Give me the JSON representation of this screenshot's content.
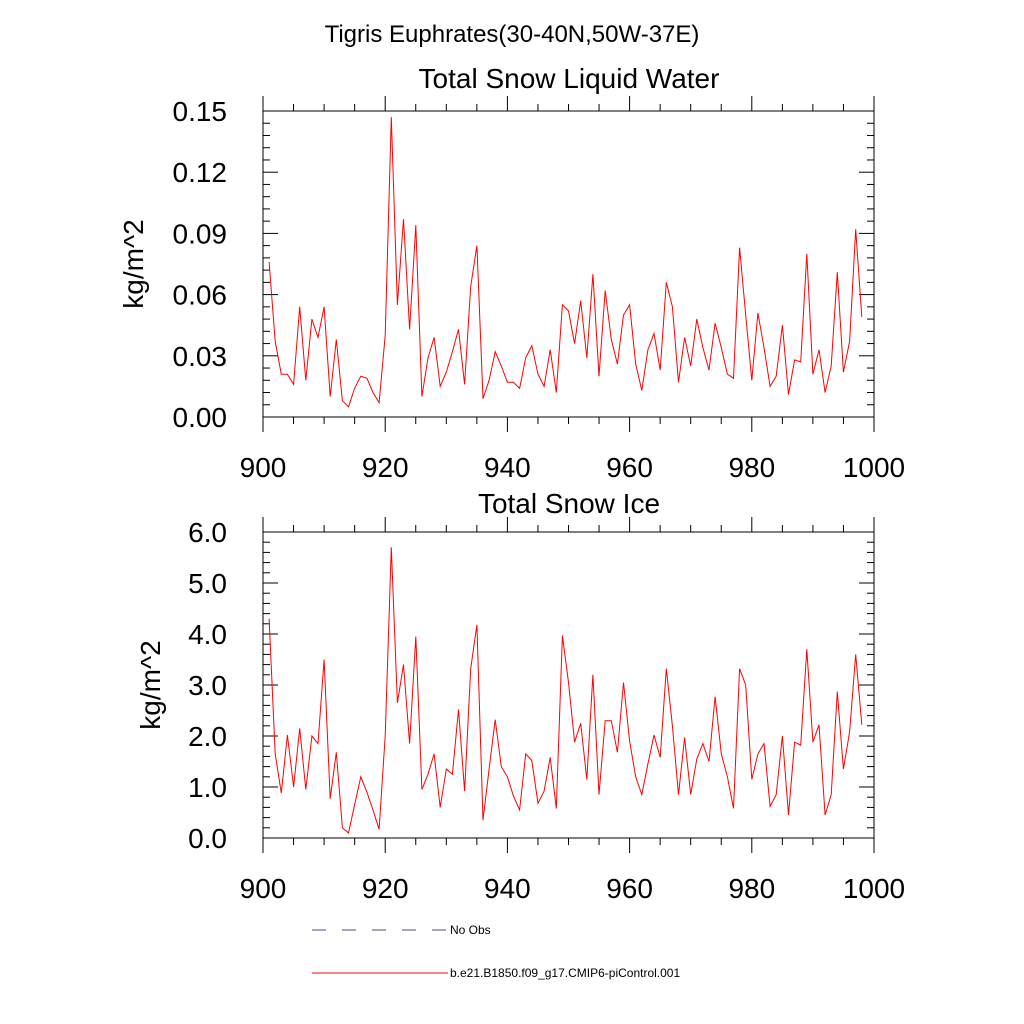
{
  "page": {
    "title": "Tigris Euphrates(30-40N,50W-37E)"
  },
  "colors": {
    "series": "#ff0000",
    "obs": "#4a4a8a",
    "axis": "#000000"
  },
  "chart_data": [
    {
      "type": "line",
      "title": "Total Snow Liquid Water",
      "xlabel": "",
      "ylabel": "kg/m^2",
      "xlim": [
        900,
        1000
      ],
      "ylim": [
        0,
        0.15
      ],
      "xticks": [
        900,
        920,
        940,
        960,
        980,
        1000
      ],
      "xtick_labels": [
        "900",
        "920",
        "940",
        "960",
        "980",
        "1000"
      ],
      "yticks": [
        0,
        0.03,
        0.06,
        0.09,
        0.12,
        0.15
      ],
      "ytick_labels": [
        "0.00",
        "0.03",
        "0.06",
        "0.09",
        "0.12",
        "0.15"
      ],
      "series": [
        {
          "name": "b.e21.B1850.f09_g17.CMIP6-piControl.001",
          "x": [
            901,
            902,
            903,
            904,
            905,
            906,
            907,
            908,
            909,
            910,
            911,
            912,
            913,
            914,
            915,
            916,
            917,
            918,
            919,
            920,
            921,
            922,
            923,
            924,
            925,
            926,
            927,
            928,
            929,
            930,
            931,
            932,
            933,
            934,
            935,
            936,
            937,
            938,
            939,
            940,
            941,
            942,
            943,
            944,
            945,
            946,
            947,
            948,
            949,
            950,
            951,
            952,
            953,
            954,
            955,
            956,
            957,
            958,
            959,
            960,
            961,
            962,
            963,
            964,
            965,
            966,
            967,
            968,
            969,
            970,
            971,
            972,
            973,
            974,
            975,
            976,
            977,
            978,
            979,
            980,
            981,
            982,
            983,
            984,
            985,
            986,
            987,
            988,
            989,
            990,
            991,
            992,
            993,
            994,
            995,
            996,
            997,
            998
          ],
          "values": [
            0.076,
            0.037,
            0.021,
            0.021,
            0.016,
            0.054,
            0.018,
            0.048,
            0.039,
            0.054,
            0.01,
            0.038,
            0.008,
            0.005,
            0.014,
            0.02,
            0.019,
            0.012,
            0.007,
            0.04,
            0.147,
            0.055,
            0.097,
            0.043,
            0.094,
            0.01,
            0.029,
            0.039,
            0.015,
            0.022,
            0.032,
            0.043,
            0.016,
            0.064,
            0.084,
            0.009,
            0.018,
            0.032,
            0.025,
            0.017,
            0.017,
            0.014,
            0.029,
            0.035,
            0.021,
            0.015,
            0.033,
            0.012,
            0.055,
            0.052,
            0.036,
            0.057,
            0.029,
            0.07,
            0.02,
            0.062,
            0.038,
            0.026,
            0.05,
            0.055,
            0.026,
            0.013,
            0.033,
            0.041,
            0.023,
            0.066,
            0.054,
            0.017,
            0.039,
            0.025,
            0.048,
            0.034,
            0.023,
            0.046,
            0.034,
            0.021,
            0.019,
            0.083,
            0.05,
            0.018,
            0.051,
            0.034,
            0.015,
            0.02,
            0.045,
            0.011,
            0.028,
            0.027,
            0.08,
            0.021,
            0.033,
            0.012,
            0.025,
            0.071,
            0.022,
            0.037,
            0.092,
            0.049
          ]
        }
      ]
    },
    {
      "type": "line",
      "title": "Total Snow Ice",
      "xlabel": "",
      "ylabel": "kg/m^2",
      "xlim": [
        900,
        1000
      ],
      "ylim": [
        0,
        6
      ],
      "xticks": [
        900,
        920,
        940,
        960,
        980,
        1000
      ],
      "xtick_labels": [
        "900",
        "920",
        "940",
        "960",
        "980",
        "1000"
      ],
      "yticks": [
        0,
        1,
        2,
        3,
        4,
        5,
        6
      ],
      "ytick_labels": [
        "0.0",
        "1.0",
        "2.0",
        "3.0",
        "4.0",
        "5.0",
        "6.0"
      ],
      "series": [
        {
          "name": "b.e21.B1850.f09_g17.CMIP6-piControl.001",
          "x": [
            901,
            902,
            903,
            904,
            905,
            906,
            907,
            908,
            909,
            910,
            911,
            912,
            913,
            914,
            915,
            916,
            917,
            918,
            919,
            920,
            921,
            922,
            923,
            924,
            925,
            926,
            927,
            928,
            929,
            930,
            931,
            932,
            933,
            934,
            935,
            936,
            937,
            938,
            939,
            940,
            941,
            942,
            943,
            944,
            945,
            946,
            947,
            948,
            949,
            950,
            951,
            952,
            953,
            954,
            955,
            956,
            957,
            958,
            959,
            960,
            961,
            962,
            963,
            964,
            965,
            966,
            967,
            968,
            969,
            970,
            971,
            972,
            973,
            974,
            975,
            976,
            977,
            978,
            979,
            980,
            981,
            982,
            983,
            984,
            985,
            986,
            987,
            988,
            989,
            990,
            991,
            992,
            993,
            994,
            995,
            996,
            997,
            998
          ],
          "values": [
            4.3,
            1.65,
            0.88,
            2.02,
            1.0,
            2.15,
            0.95,
            2.0,
            1.85,
            3.5,
            0.77,
            1.68,
            0.2,
            0.1,
            0.65,
            1.2,
            0.9,
            0.55,
            0.17,
            2.0,
            5.7,
            2.65,
            3.4,
            1.85,
            3.95,
            0.95,
            1.25,
            1.65,
            0.6,
            1.35,
            1.25,
            2.52,
            0.92,
            3.32,
            4.18,
            0.35,
            1.35,
            2.32,
            1.4,
            1.2,
            0.82,
            0.55,
            1.65,
            1.52,
            0.68,
            0.92,
            1.58,
            0.58,
            3.97,
            3.05,
            1.88,
            2.25,
            1.15,
            3.2,
            0.85,
            2.3,
            2.3,
            1.68,
            3.05,
            1.9,
            1.2,
            0.85,
            1.45,
            2.02,
            1.58,
            3.32,
            2.2,
            0.85,
            1.97,
            0.85,
            1.55,
            1.85,
            1.5,
            2.77,
            1.65,
            1.2,
            0.58,
            3.32,
            3.0,
            1.15,
            1.65,
            1.85,
            0.62,
            0.85,
            2.0,
            0.45,
            1.88,
            1.82,
            3.7,
            1.88,
            2.22,
            0.45,
            0.85,
            2.87,
            1.35,
            2.08,
            3.6,
            2.22
          ]
        }
      ]
    }
  ],
  "legend": {
    "obs_label": "No Obs",
    "model_label": "b.e21.B1850.f09_g17.CMIP6-piControl.001"
  }
}
